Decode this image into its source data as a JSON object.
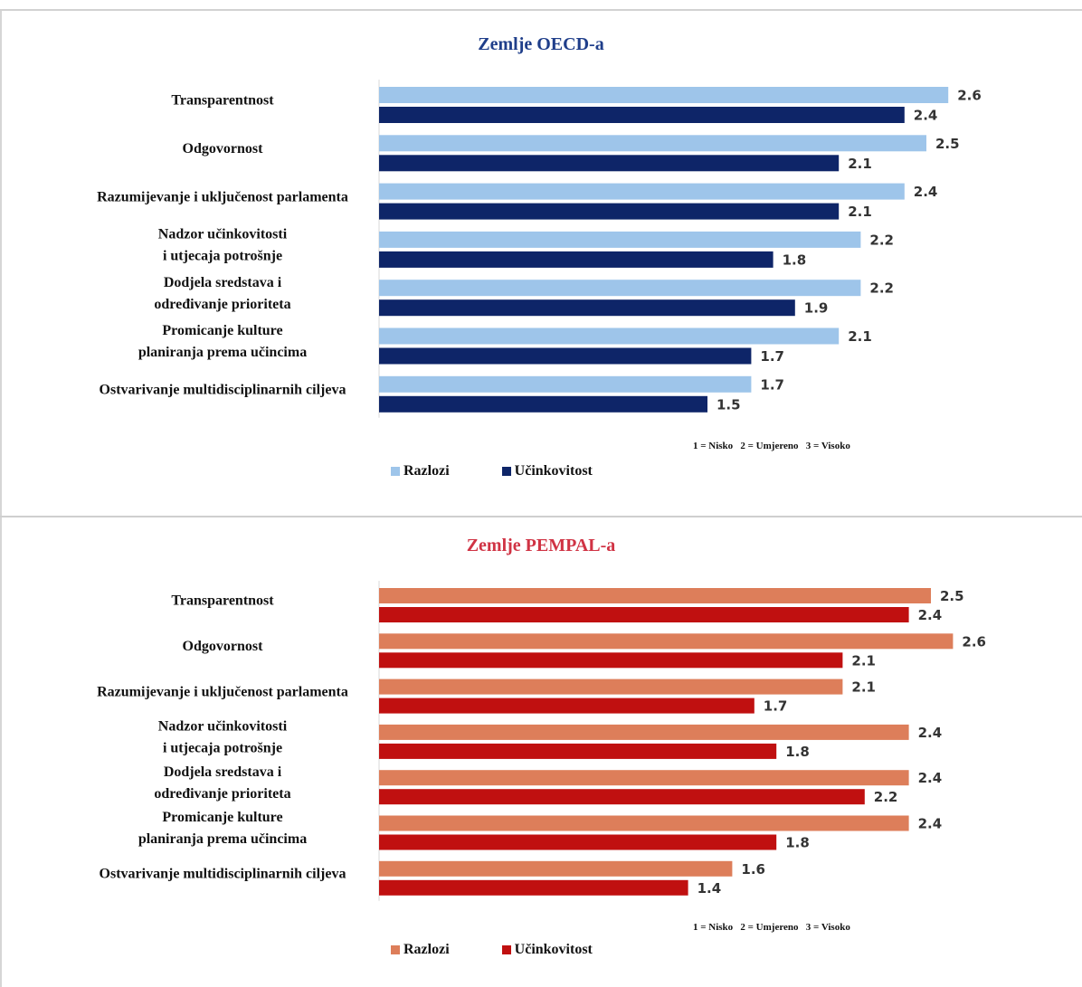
{
  "colors": {
    "oecd_reasons": "#9ec5ea",
    "oecd_performance": "#0e2568",
    "pempal_reasons": "#dd7e5a",
    "pempal_performance": "#c01010",
    "oecd_title": "#1f3e8a",
    "pempal_title": "#d03344"
  },
  "chart_data": [
    {
      "type": "bar",
      "orientation": "horizontal",
      "title": "Zemlje OECD-a",
      "categories": [
        "Transparentnost",
        "Odgovornost",
        "Razumijevanje i uključenost parlamenta",
        "Nadzor učinkovitosti i utjecaja potrošnje",
        "Dodjela sredstava i određivanje prioriteta",
        "Promicanje kulture planiranja prema učincima",
        "Ostvarivanje multidisciplinarnih ciljeva"
      ],
      "series": [
        {
          "name": "Razlozi",
          "values": [
            2.6,
            2.5,
            2.4,
            2.2,
            2.2,
            2.1,
            1.7
          ]
        },
        {
          "name": "Učinkovitost",
          "values": [
            2.4,
            2.1,
            2.1,
            1.8,
            1.9,
            1.7,
            1.5
          ]
        }
      ],
      "xlim": [
        0,
        2.6
      ],
      "scale_note": "1 = Nisko   2 = Umjereno   3 = Visoko",
      "legend_position": "bottom-left"
    },
    {
      "type": "bar",
      "orientation": "horizontal",
      "title": "Zemlje PEMPAL-a",
      "categories": [
        "Transparentnost",
        "Odgovornost",
        "Razumijevanje i uključenost parlamenta",
        "Nadzor učinkovitosti i utjecaja potrošnje",
        "Dodjela sredstava i određivanje prioriteta",
        "Promicanje kulture planiranja prema učincima",
        "Ostvarivanje multidisciplinarnih ciljeva"
      ],
      "series": [
        {
          "name": "Razlozi",
          "values": [
            2.5,
            2.6,
            2.1,
            2.4,
            2.4,
            2.4,
            1.6
          ]
        },
        {
          "name": "Učinkovitost",
          "values": [
            2.4,
            2.1,
            1.7,
            1.8,
            2.2,
            1.8,
            1.4
          ]
        }
      ],
      "xlim": [
        0,
        2.6
      ],
      "scale_note": "1 = Nisko   2 = Umjereno   3 = Visoko",
      "legend_position": "bottom-left"
    }
  ]
}
